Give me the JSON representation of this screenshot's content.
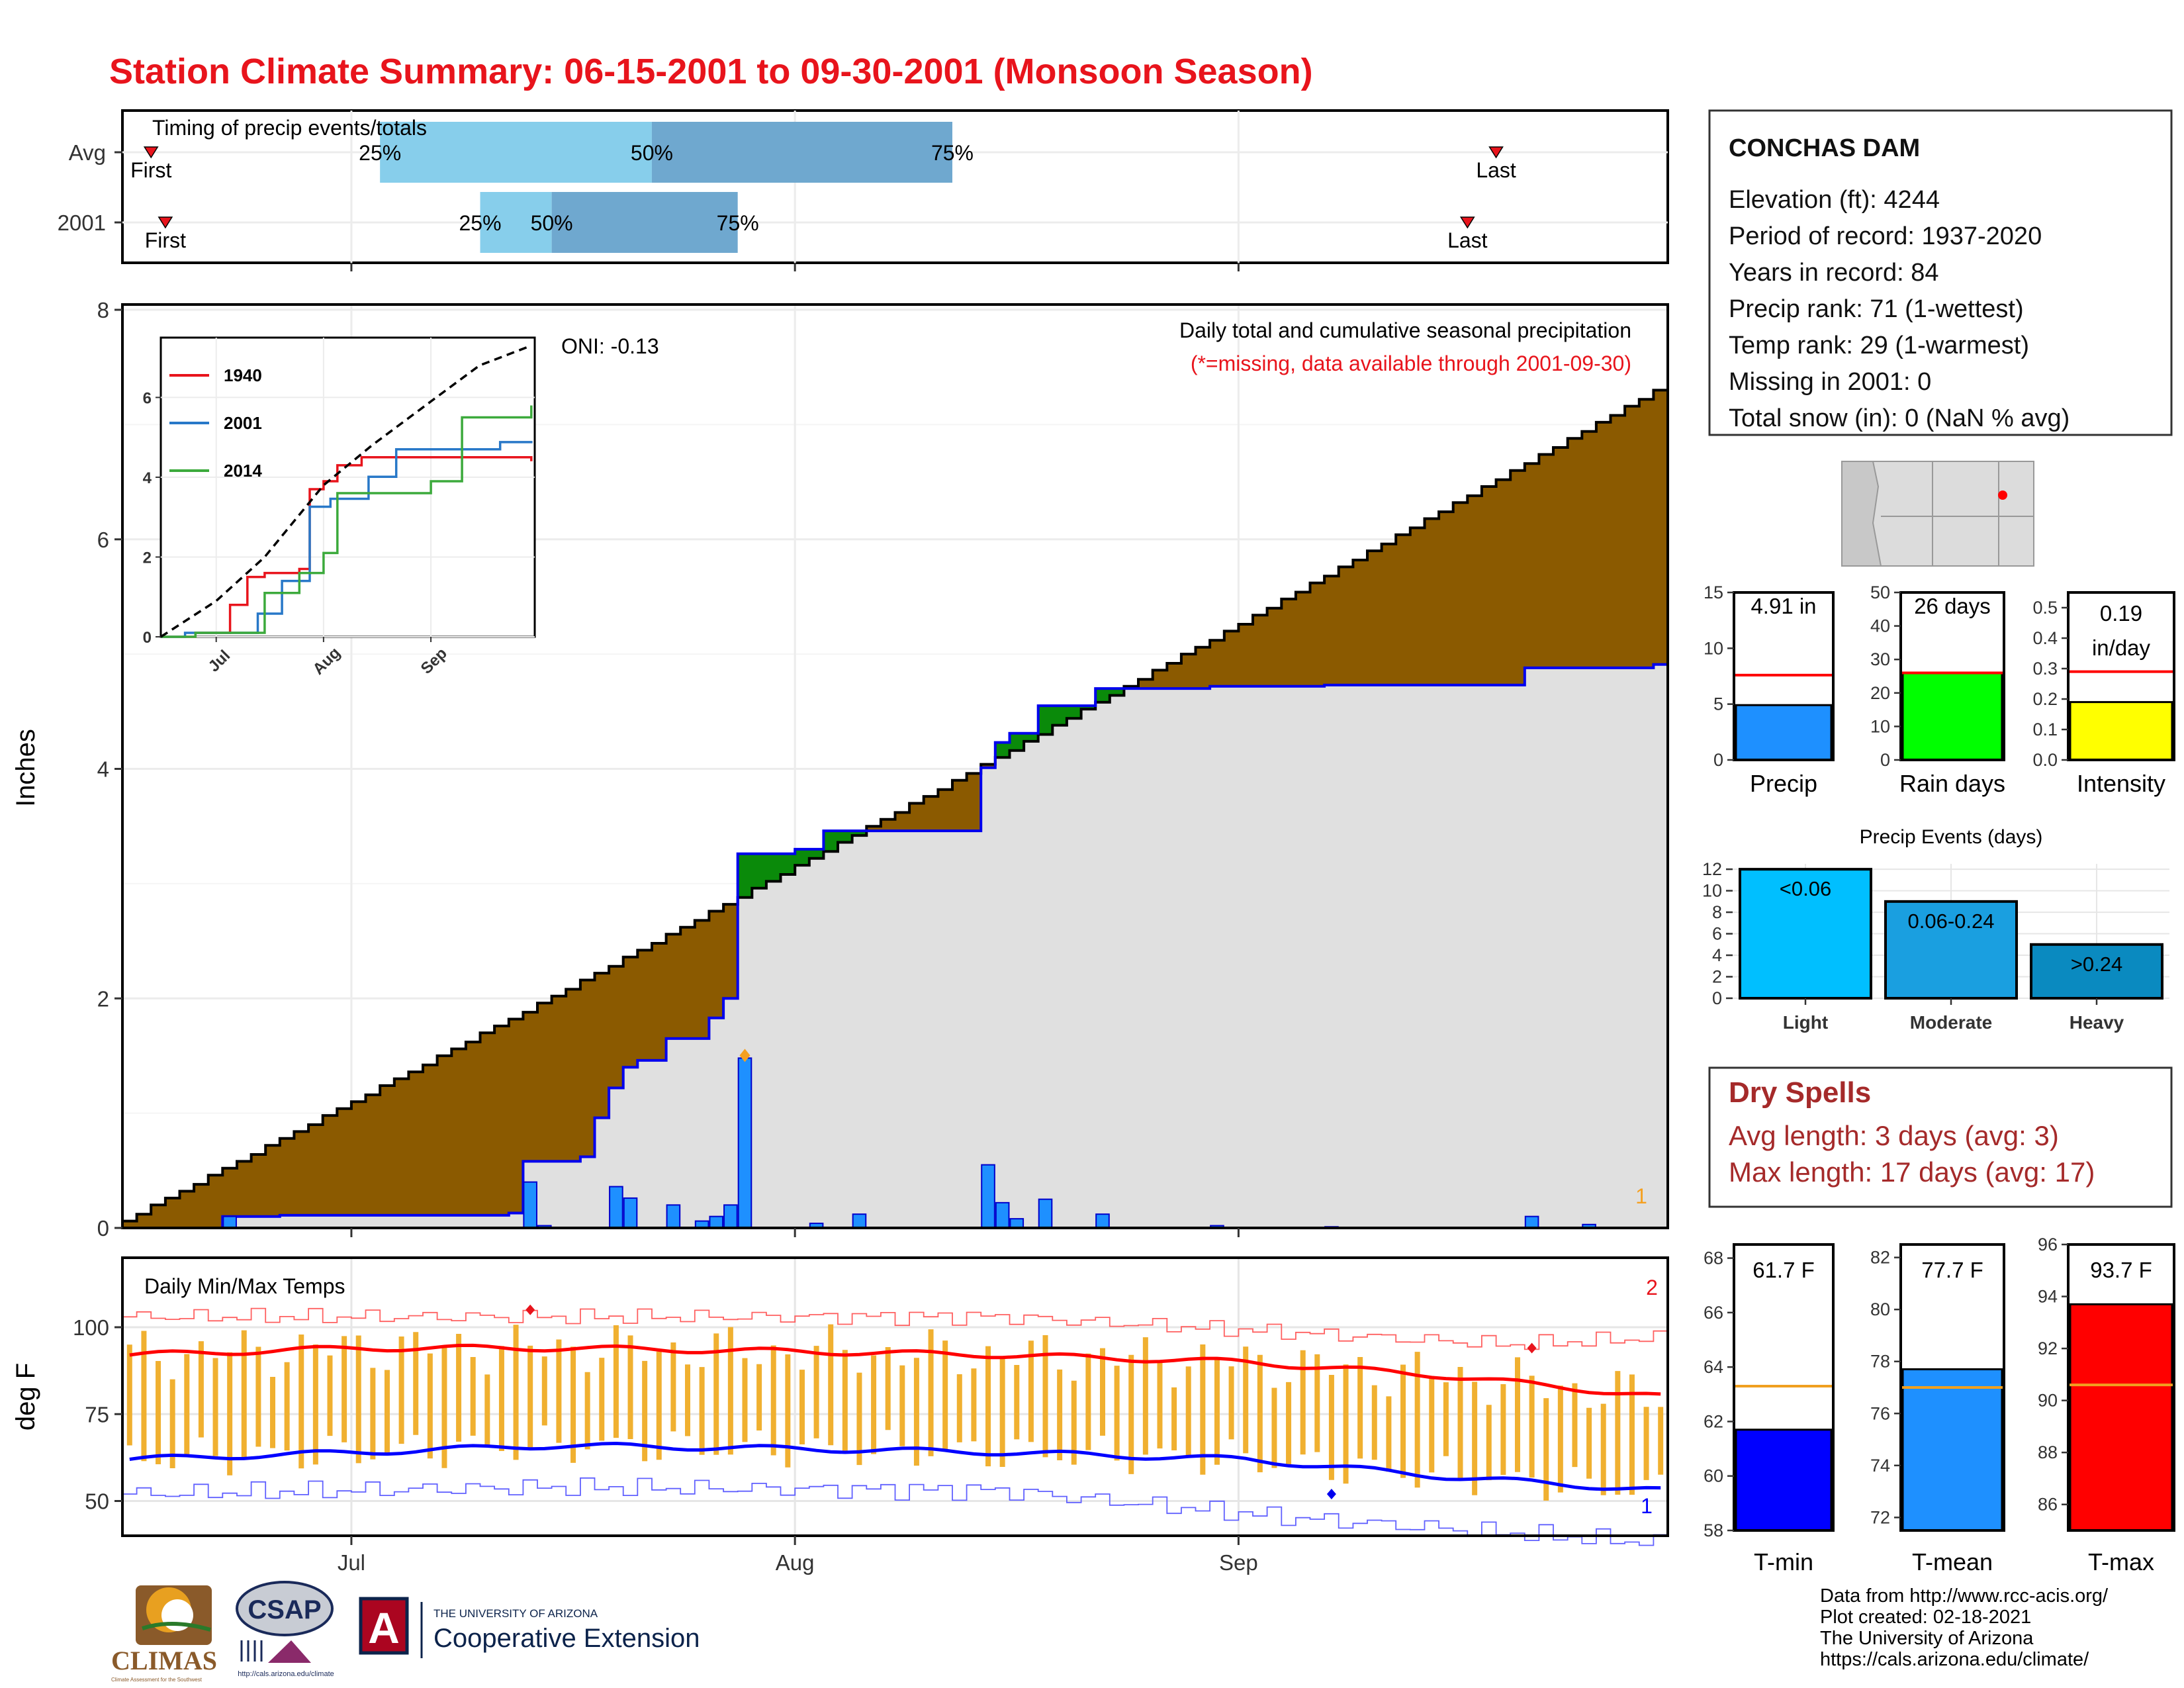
{
  "title": "Station Climate Summary: 06-15-2001 to 09-30-2001 (Monsoon Season)",
  "station": {
    "name": "CONCHAS DAM",
    "lines": [
      "Elevation (ft): 4244",
      "Period of record: 1937-2020",
      "Years in record: 84",
      "Precip rank: 71 (1-wettest)",
      "Temp rank: 29 (1-warmest)",
      "Missing in 2001: 0",
      "Total snow (in): 0 (NaN % avg)"
    ]
  },
  "colors": {
    "title": "#e8141c",
    "observed": "#1e90ff",
    "cum_avg_fill": "#8b5a00",
    "cum_obs_fill": "#e0e0e0",
    "above_avg_fill": "#0a8a0a",
    "tmax_line": "#ff0000",
    "tmin_line": "#0000ff",
    "temp_bar": "#f0b030",
    "light_events": "#00bfff",
    "moderate_events": "#1a9fe0",
    "heavy_events": "#0a8ac0"
  },
  "timing": {
    "title": "Timing of precip events/totals",
    "rows": [
      {
        "label": "Avg",
        "first": "06-17",
        "last": "09-19",
        "p25": "07-03",
        "p50": "07-22",
        "p75": "08-12"
      },
      {
        "label": "2001",
        "first": "06-18",
        "last": "09-17",
        "p25": "07-10",
        "p50": "07-15",
        "p75": "07-28"
      }
    ],
    "first_label": "First",
    "last_label": "Last",
    "p25_label": "25%",
    "p50_label": "50%",
    "p75_label": "75%"
  },
  "precip_panel": {
    "ylabel": "Inches",
    "oni": "ONI: -0.13",
    "caption": "Daily total and cumulative seasonal precipitation",
    "missing_note": "(*=missing, data available through 2001-09-30)",
    "corner_marker": "1",
    "yticks": [
      "0",
      "2",
      "4",
      "6",
      "8"
    ]
  },
  "inset": {
    "yticks": [
      "0",
      "2",
      "4",
      "6"
    ],
    "xticks": [
      "Jul",
      "Aug",
      "Sep"
    ],
    "legend": [
      {
        "name": "1940",
        "color": "#e8141c"
      },
      {
        "name": "2001",
        "color": "#2878c8"
      },
      {
        "name": "2014",
        "color": "#3caa3c"
      }
    ]
  },
  "temp_panel": {
    "title": "Daily Min/Max Temps",
    "ylabel": "deg F",
    "yticks": [
      "50",
      "75",
      "100"
    ],
    "marker_top": "2",
    "marker_bottom": "1"
  },
  "x_axis": {
    "ticks": [
      "Jul",
      "Aug",
      "Sep"
    ]
  },
  "summary_bars": [
    {
      "label": "Precip",
      "value_label": "4.91 in",
      "yticks": [
        "0",
        "5",
        "10",
        "15"
      ],
      "color": "#1e90ff"
    },
    {
      "label": "Rain days",
      "value_label": "26 days",
      "yticks": [
        "0",
        "10",
        "20",
        "30",
        "40",
        "50"
      ],
      "color": "#00ff00"
    },
    {
      "label": "Intensity",
      "value_label_1": "0.19",
      "value_label_2": "in/day",
      "yticks": [
        "0.0",
        "0.1",
        "0.2",
        "0.3",
        "0.4",
        "0.5"
      ],
      "color": "#ffff00"
    }
  ],
  "events": {
    "title": "Precip Events (days)",
    "yticks": [
      "0",
      "2",
      "4",
      "6",
      "8",
      "10",
      "12"
    ],
    "bars": [
      {
        "category": "Light",
        "label": "<0.06"
      },
      {
        "category": "Moderate",
        "label": "0.06-0.24"
      },
      {
        "category": "Heavy",
        "label": ">0.24"
      }
    ]
  },
  "dry_spells": {
    "title": "Dry Spells",
    "avg_length": "Avg length: 3 days (avg: 3)",
    "max_length": "Max length: 17 days (avg: 17)"
  },
  "temp_summary": [
    {
      "label": "T-min",
      "value_label": "61.7 F",
      "yticks": [
        "58",
        "60",
        "62",
        "64",
        "66",
        "68"
      ],
      "color": "#0000ff"
    },
    {
      "label": "T-mean",
      "value_label": "77.7 F",
      "yticks": [
        "72",
        "74",
        "76",
        "78",
        "80",
        "82"
      ],
      "color": "#1e90ff"
    },
    {
      "label": "T-max",
      "value_label": "93.7 F",
      "yticks": [
        "86",
        "88",
        "90",
        "92",
        "94",
        "96"
      ],
      "color": "#ff0000"
    }
  ],
  "footer": [
    "Data from http://www.rcc-acis.org/",
    "Plot created: 02-18-2021",
    "The University of Arizona",
    "https://cals.arizona.edu/climate/"
  ],
  "logos": {
    "climas": "CLIMAS",
    "climas_sub": "Climate Assessment for the Southwest",
    "csap": "CSAP",
    "csap_url": "http://cals.arizona.edu/climate",
    "ua_letter": "A",
    "ua_line1": "THE UNIVERSITY OF ARIZONA",
    "ua_line2": "Cooperative Extension"
  },
  "chart_data": [
    {
      "type": "area",
      "name": "precip-main",
      "x_range": [
        "2001-06-15",
        "2001-09-30"
      ],
      "ylim": [
        0,
        8
      ],
      "grid": true,
      "cumulative_avg_end": 7.3,
      "daily_precip": [
        {
          "date": "2001-06-22",
          "value": 0.1
        },
        {
          "date": "2001-07-13",
          "value": 0.4
        },
        {
          "date": "2001-07-14",
          "value": 0.02
        },
        {
          "date": "2001-07-19",
          "value": 0.36
        },
        {
          "date": "2001-07-20",
          "value": 0.26
        },
        {
          "date": "2001-07-23",
          "value": 0.2
        },
        {
          "date": "2001-07-25",
          "value": 0.06
        },
        {
          "date": "2001-07-26",
          "value": 0.1
        },
        {
          "date": "2001-07-27",
          "value": 0.2
        },
        {
          "date": "2001-07-28",
          "value": 1.48
        },
        {
          "date": "2001-08-02",
          "value": 0.04
        },
        {
          "date": "2001-08-05",
          "value": 0.12
        },
        {
          "date": "2001-08-14",
          "value": 0.55
        },
        {
          "date": "2001-08-15",
          "value": 0.22
        },
        {
          "date": "2001-08-16",
          "value": 0.08
        },
        {
          "date": "2001-08-18",
          "value": 0.25
        },
        {
          "date": "2001-08-22",
          "value": 0.12
        },
        {
          "date": "2001-08-30",
          "value": 0.02
        },
        {
          "date": "2001-09-07",
          "value": 0.01
        },
        {
          "date": "2001-09-21",
          "value": 0.1
        },
        {
          "date": "2001-09-25",
          "value": 0.03
        }
      ],
      "cumulative_observed": [
        {
          "date": "2001-06-15",
          "value": 0.0
        },
        {
          "date": "2001-06-21",
          "value": 0.0
        },
        {
          "date": "2001-06-22",
          "value": 0.1
        },
        {
          "date": "2001-06-26",
          "value": 0.11
        },
        {
          "date": "2001-07-12",
          "value": 0.13
        },
        {
          "date": "2001-07-13",
          "value": 0.58
        },
        {
          "date": "2001-07-17",
          "value": 0.62
        },
        {
          "date": "2001-07-18",
          "value": 0.96
        },
        {
          "date": "2001-07-19",
          "value": 1.22
        },
        {
          "date": "2001-07-20",
          "value": 1.4
        },
        {
          "date": "2001-07-21",
          "value": 1.46
        },
        {
          "date": "2001-07-23",
          "value": 1.65
        },
        {
          "date": "2001-07-26",
          "value": 1.83
        },
        {
          "date": "2001-07-27",
          "value": 2.0
        },
        {
          "date": "2001-07-28",
          "value": 3.26
        },
        {
          "date": "2001-08-01",
          "value": 3.3
        },
        {
          "date": "2001-08-03",
          "value": 3.46
        },
        {
          "date": "2001-08-14",
          "value": 4.01
        },
        {
          "date": "2001-08-15",
          "value": 4.23
        },
        {
          "date": "2001-08-16",
          "value": 4.31
        },
        {
          "date": "2001-08-18",
          "value": 4.55
        },
        {
          "date": "2001-08-22",
          "value": 4.7
        },
        {
          "date": "2001-08-30",
          "value": 4.72
        },
        {
          "date": "2001-09-07",
          "value": 4.73
        },
        {
          "date": "2001-09-21",
          "value": 4.88
        },
        {
          "date": "2001-09-30",
          "value": 4.91
        }
      ]
    },
    {
      "type": "line",
      "name": "inset-cumulative-comparison",
      "x_range": [
        "06-15",
        "09-30"
      ],
      "ylim": [
        0,
        7.5
      ],
      "series": [
        {
          "name": "1940",
          "points": [
            [
              "06-15",
              0
            ],
            [
              "06-25",
              0.1
            ],
            [
              "07-05",
              0.8
            ],
            [
              "07-10",
              1.5
            ],
            [
              "07-15",
              1.6
            ],
            [
              "07-25",
              1.7
            ],
            [
              "07-28",
              3.7
            ],
            [
              "08-01",
              3.9
            ],
            [
              "08-05",
              4.3
            ],
            [
              "08-12",
              4.5
            ],
            [
              "08-20",
              4.5
            ],
            [
              "09-05",
              4.5
            ],
            [
              "09-30",
              4.4
            ]
          ]
        },
        {
          "name": "2001",
          "points": [
            [
              "06-15",
              0
            ],
            [
              "06-22",
              0.1
            ],
            [
              "07-13",
              0.58
            ],
            [
              "07-20",
              1.4
            ],
            [
              "07-28",
              3.26
            ],
            [
              "08-03",
              3.46
            ],
            [
              "08-14",
              4.01
            ],
            [
              "08-22",
              4.7
            ],
            [
              "09-21",
              4.88
            ],
            [
              "09-30",
              4.91
            ]
          ]
        },
        {
          "name": "2014",
          "points": [
            [
              "06-15",
              0
            ],
            [
              "06-25",
              0.1
            ],
            [
              "07-15",
              1.1
            ],
            [
              "07-25",
              1.6
            ],
            [
              "08-01",
              2.1
            ],
            [
              "08-05",
              3.6
            ],
            [
              "08-15",
              3.6
            ],
            [
              "09-01",
              3.9
            ],
            [
              "09-10",
              5.5
            ],
            [
              "09-30",
              5.8
            ]
          ]
        },
        {
          "name": "Average",
          "points": [
            [
              "06-15",
              0
            ],
            [
              "07-01",
              0.9
            ],
            [
              "07-15",
              2.0
            ],
            [
              "08-01",
              3.8
            ],
            [
              "08-15",
              4.8
            ],
            [
              "09-01",
              5.9
            ],
            [
              "09-15",
              6.8
            ],
            [
              "09-30",
              7.3
            ]
          ]
        }
      ]
    },
    {
      "type": "line",
      "name": "daily-temperatures",
      "ylim": [
        40,
        120
      ],
      "series": [
        {
          "name": "Tmax",
          "points": [
            [
              "06-15",
              92
            ],
            [
              "07-01",
              94
            ],
            [
              "07-15",
              94
            ],
            [
              "08-01",
              93
            ],
            [
              "08-15",
              92
            ],
            [
              "09-01",
              90
            ],
            [
              "09-15",
              86
            ],
            [
              "09-30",
              80
            ]
          ]
        },
        {
          "name": "Tmin",
          "points": [
            [
              "06-15",
              62
            ],
            [
              "07-01",
              64
            ],
            [
              "07-15",
              66
            ],
            [
              "08-01",
              65
            ],
            [
              "08-15",
              64
            ],
            [
              "09-01",
              62
            ],
            [
              "09-15",
              57
            ],
            [
              "09-30",
              53
            ]
          ]
        },
        {
          "name": "RecordHigh",
          "points": [
            [
              "06-15",
              103
            ],
            [
              "07-13",
              103
            ],
            [
              "08-15",
              103
            ],
            [
              "09-20",
              95
            ],
            [
              "09-30",
              97
            ]
          ]
        },
        {
          "name": "RecordLow",
          "points": [
            [
              "06-15",
              52
            ],
            [
              "07-15",
              54
            ],
            [
              "08-15",
              53
            ],
            [
              "09-05",
              45
            ],
            [
              "09-30",
              38
            ]
          ]
        }
      ]
    },
    {
      "type": "bar",
      "name": "seasonal-summary",
      "categories": [
        "Precip",
        "Rain days",
        "Intensity"
      ],
      "values": [
        4.91,
        26,
        0.19
      ],
      "averages": [
        7.6,
        26,
        0.29
      ],
      "ylims": [
        [
          0,
          15
        ],
        [
          0,
          50
        ],
        [
          0,
          0.55
        ]
      ]
    },
    {
      "type": "bar",
      "name": "precip-events",
      "categories": [
        "Light",
        "Moderate",
        "Heavy"
      ],
      "values": [
        12,
        9,
        5
      ],
      "ylim": [
        0,
        12.5
      ]
    },
    {
      "type": "bar",
      "name": "temperature-summary",
      "categories": [
        "T-min",
        "T-mean",
        "T-max"
      ],
      "values": [
        61.7,
        77.7,
        93.7
      ],
      "averages": [
        63.3,
        77.0,
        90.6
      ],
      "ylims": [
        [
          58,
          68.5
        ],
        [
          71.5,
          82.5
        ],
        [
          85,
          96
        ]
      ]
    }
  ]
}
